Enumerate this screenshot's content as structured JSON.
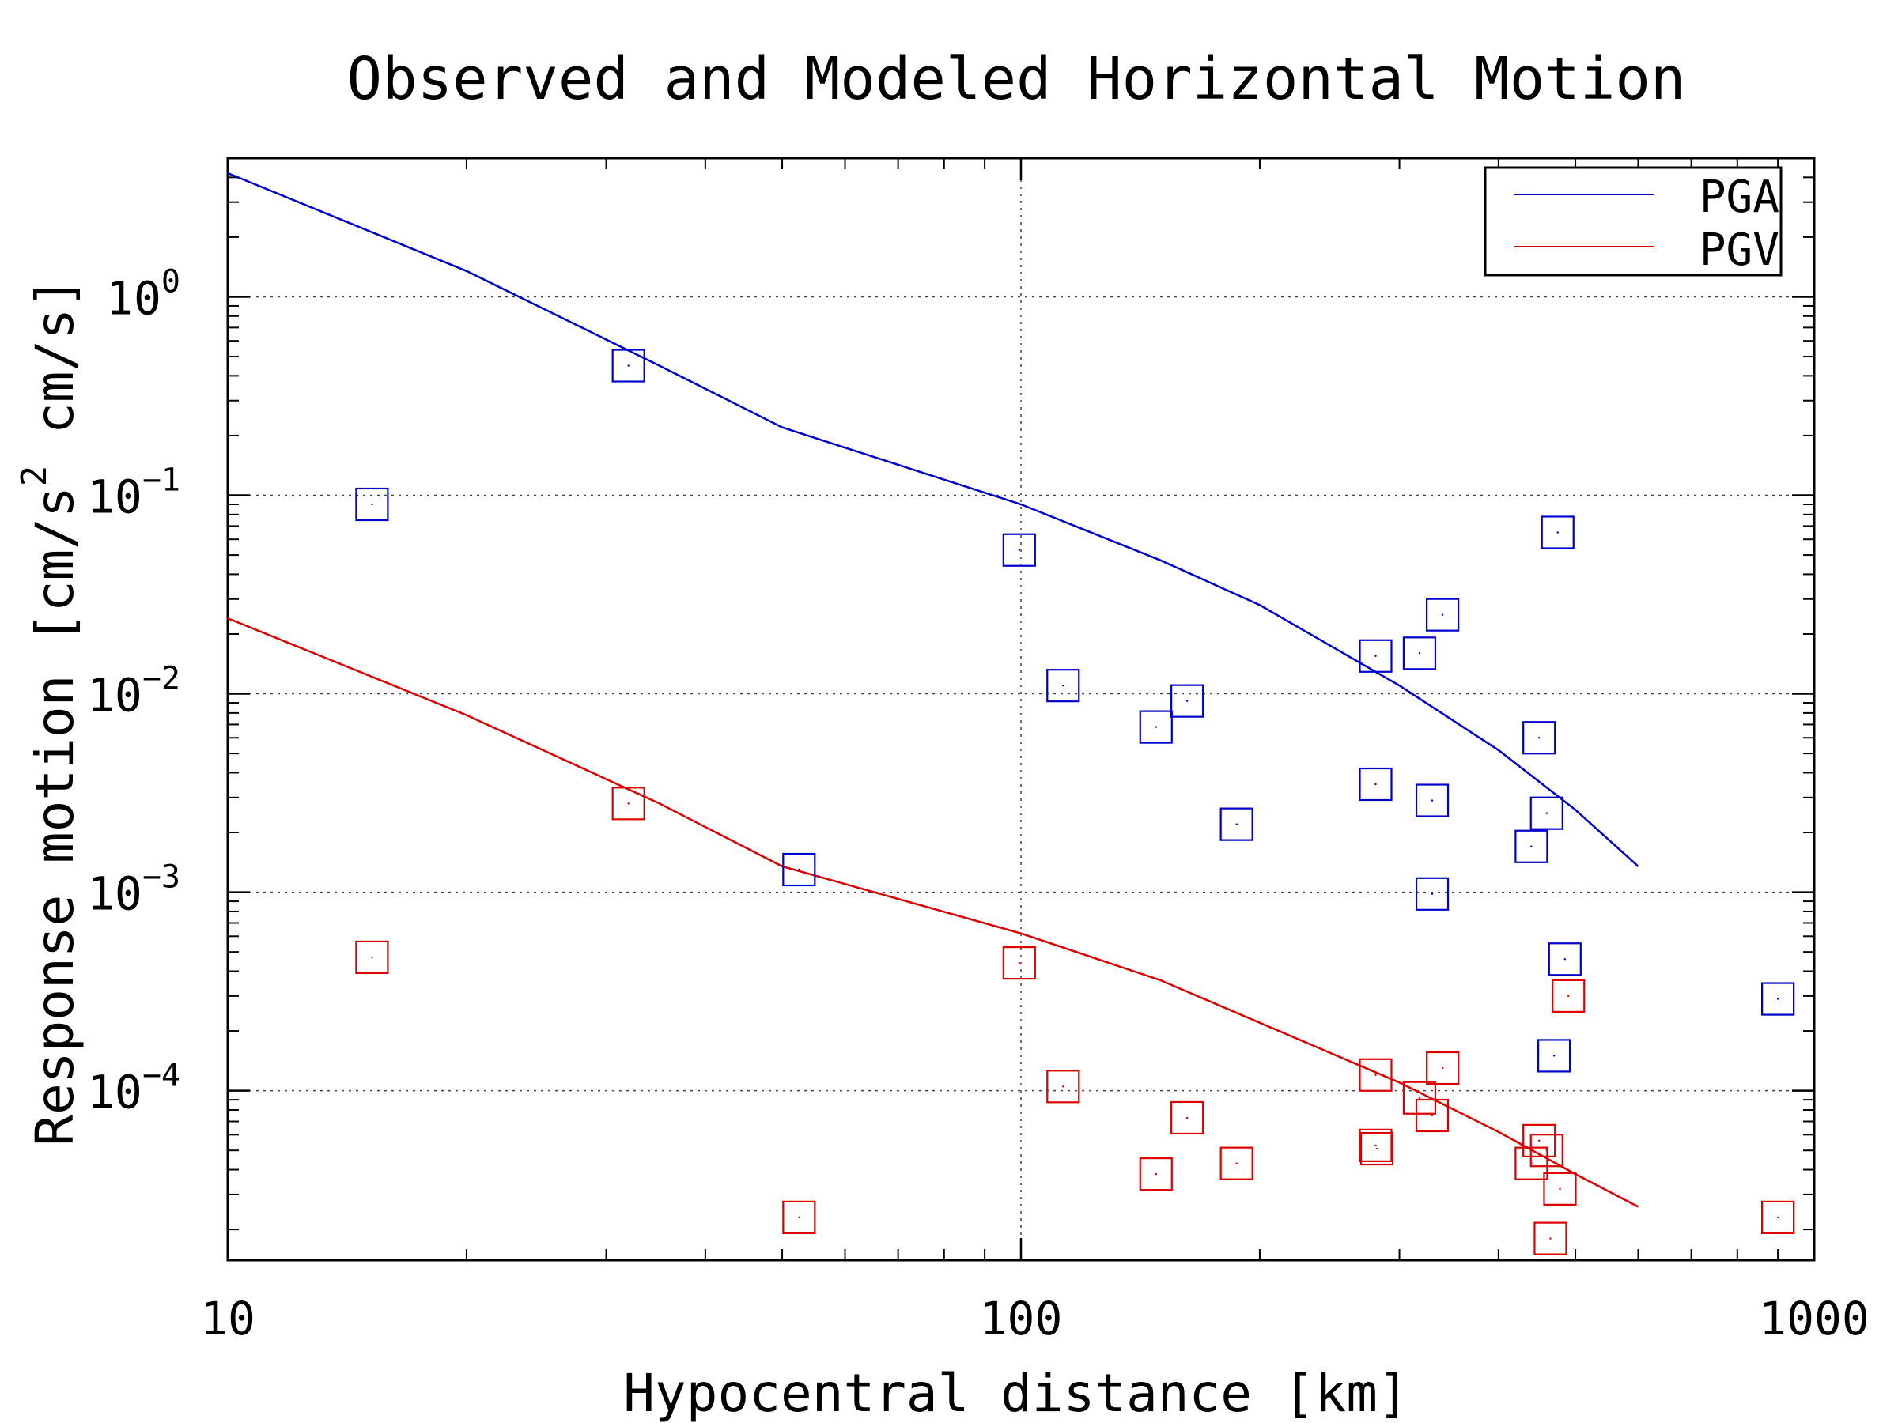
{
  "chart_data": {
    "type": "scatter",
    "title": "Observed and Modeled Horizontal Motion",
    "xlabel": "Hypocentral distance [km]",
    "ylabel": {
      "prefix": "Response motion  [cm/s",
      "superscript": "2",
      "suffix": "  cm/s]"
    },
    "x_scale": "log",
    "y_scale": "log",
    "xlim": [
      10,
      1000
    ],
    "ylim": [
      1.4e-05,
      5.0
    ],
    "grid": true,
    "x_ticks": [
      {
        "value": 10,
        "label": "10"
      },
      {
        "value": 100,
        "label": "100"
      },
      {
        "value": 1000,
        "label": "1000"
      }
    ],
    "y_ticks": [
      {
        "value": 1,
        "base": "10",
        "exp": "0"
      },
      {
        "value": 0.1,
        "base": "10",
        "exp": "−1"
      },
      {
        "value": 0.01,
        "base": "10",
        "exp": "−2"
      },
      {
        "value": 0.001,
        "base": "10",
        "exp": "−3"
      },
      {
        "value": 0.0001,
        "base": "10",
        "exp": "−4"
      }
    ],
    "legend": {
      "position": "top-right",
      "entries": [
        {
          "name": "PGA",
          "color": "#0000cc"
        },
        {
          "name": "PGV",
          "color": "#dd0000"
        }
      ]
    },
    "series": [
      {
        "name": "PGA",
        "kind": "line",
        "color": "#0000cc",
        "x": [
          10,
          20,
          35,
          50,
          100,
          150,
          200,
          300,
          400,
          500,
          600
        ],
        "y": [
          4.2,
          1.35,
          0.45,
          0.22,
          0.09,
          0.047,
          0.028,
          0.011,
          0.0052,
          0.0026,
          0.00135
        ]
      },
      {
        "name": "PGV",
        "kind": "line",
        "color": "#dd0000",
        "x": [
          10,
          20,
          35,
          50,
          60,
          100,
          150,
          200,
          300,
          400,
          500,
          600
        ],
        "y": [
          0.024,
          0.0078,
          0.0028,
          0.00135,
          0.0011,
          0.00062,
          0.00036,
          0.00022,
          0.00011,
          6.2e-05,
          3.8e-05,
          2.6e-05
        ]
      },
      {
        "name": "PGA",
        "kind": "observed",
        "color": "#0000cc",
        "x": [
          15.2,
          32.0,
          52.5,
          99.5,
          113,
          148,
          162,
          187,
          280,
          318,
          330,
          340,
          280,
          330,
          440,
          450,
          460,
          475,
          470,
          485,
          900
        ],
        "y": [
          0.09,
          0.45,
          0.0013,
          0.053,
          0.011,
          0.0068,
          0.0092,
          0.0022,
          0.0155,
          0.016,
          0.0029,
          0.025,
          0.0035,
          0.00098,
          0.0017,
          0.006,
          0.0025,
          0.065,
          0.00015,
          0.00046,
          0.00029
        ]
      },
      {
        "name": "PGV",
        "kind": "observed",
        "color": "#dd0000",
        "x": [
          15.2,
          32.0,
          52.5,
          99.5,
          113,
          148,
          162,
          187,
          280,
          280,
          281,
          318,
          330,
          340,
          440,
          450,
          460,
          465,
          478,
          490,
          900
        ],
        "y": [
          0.00047,
          0.0028,
          2.3e-05,
          0.00044,
          0.000105,
          3.8e-05,
          7.3e-05,
          4.3e-05,
          0.00012,
          5.3e-05,
          5.1e-05,
          9.2e-05,
          7.5e-05,
          0.00013,
          4.3e-05,
          5.6e-05,
          5e-05,
          1.8e-05,
          3.2e-05,
          0.0003,
          2.3e-05
        ]
      }
    ]
  }
}
